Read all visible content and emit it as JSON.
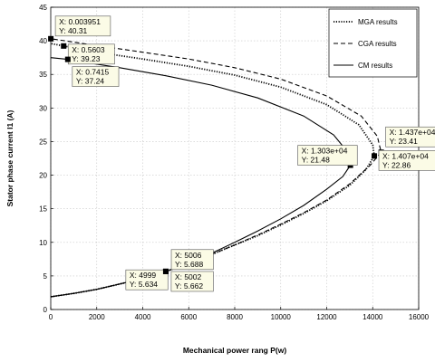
{
  "chart_data": {
    "type": "line",
    "title": "",
    "xlabel": "Mechanical power rang P(w)",
    "ylabel": "Stator phase current I1 (A)",
    "xlim": [
      0,
      16000
    ],
    "ylim": [
      0,
      45
    ],
    "xticks": [
      0,
      2000,
      4000,
      6000,
      8000,
      10000,
      12000,
      14000,
      16000
    ],
    "yticks": [
      0,
      5,
      10,
      15,
      20,
      25,
      30,
      35,
      40,
      45
    ],
    "grid": true,
    "legend_position": "top-right",
    "series": [
      {
        "name": "MGA results",
        "style": "dotted",
        "points": [
          [
            0,
            1.9
          ],
          [
            1000,
            2.4
          ],
          [
            2000,
            3.0
          ],
          [
            3000,
            3.8
          ],
          [
            4000,
            4.6
          ],
          [
            5002,
            5.662
          ],
          [
            6000,
            6.9
          ],
          [
            7000,
            8.2
          ],
          [
            8000,
            9.6
          ],
          [
            9000,
            11.0
          ],
          [
            10000,
            12.6
          ],
          [
            11000,
            14.3
          ],
          [
            12000,
            16.2
          ],
          [
            13000,
            18.5
          ],
          [
            13700,
            20.8
          ],
          [
            14070,
            22.86
          ],
          [
            14000,
            24.5
          ],
          [
            13400,
            27.5
          ],
          [
            12000,
            30.5
          ],
          [
            10000,
            33.1
          ],
          [
            8000,
            34.9
          ],
          [
            6000,
            36.2
          ],
          [
            4000,
            37.3
          ],
          [
            2000,
            38.3
          ],
          [
            561,
            39.23
          ],
          [
            0,
            39.6
          ]
        ]
      },
      {
        "name": "CGA results",
        "style": "dashed",
        "points": [
          [
            0,
            1.9
          ],
          [
            1000,
            2.4
          ],
          [
            2000,
            3.0
          ],
          [
            3000,
            3.8
          ],
          [
            4000,
            4.6
          ],
          [
            5006,
            5.688
          ],
          [
            6000,
            6.9
          ],
          [
            7000,
            8.2
          ],
          [
            8000,
            9.6
          ],
          [
            9000,
            11.1
          ],
          [
            10000,
            12.7
          ],
          [
            11000,
            14.4
          ],
          [
            12000,
            16.3
          ],
          [
            13000,
            18.7
          ],
          [
            13900,
            21.5
          ],
          [
            14370,
            23.41
          ],
          [
            14200,
            25.8
          ],
          [
            13500,
            28.8
          ],
          [
            12000,
            31.8
          ],
          [
            10000,
            34.3
          ],
          [
            8000,
            36.0
          ],
          [
            6000,
            37.3
          ],
          [
            4000,
            38.3
          ],
          [
            2000,
            39.3
          ],
          [
            4,
            40.31
          ]
        ]
      },
      {
        "name": "CM results",
        "style": "solid",
        "points": [
          [
            0,
            1.9
          ],
          [
            1000,
            2.4
          ],
          [
            2000,
            3.0
          ],
          [
            3000,
            3.8
          ],
          [
            4000,
            4.6
          ],
          [
            4999,
            5.634
          ],
          [
            6000,
            6.9
          ],
          [
            7000,
            8.4
          ],
          [
            8000,
            10.0
          ],
          [
            9000,
            11.7
          ],
          [
            10000,
            13.5
          ],
          [
            11000,
            15.5
          ],
          [
            12000,
            17.9
          ],
          [
            12700,
            19.8
          ],
          [
            13030,
            21.48
          ],
          [
            12900,
            23.5
          ],
          [
            12300,
            26.0
          ],
          [
            11000,
            28.8
          ],
          [
            9000,
            31.5
          ],
          [
            7000,
            33.4
          ],
          [
            5000,
            34.8
          ],
          [
            3000,
            36.0
          ],
          [
            1500,
            36.8
          ],
          [
            742,
            37.24
          ],
          [
            0,
            37.5
          ]
        ]
      }
    ],
    "datatips": [
      {
        "label_x": "X: 0.003951",
        "label_y": "Y: 40.31",
        "x": 4,
        "y": 40.31
      },
      {
        "label_x": "X: 0.5603",
        "label_y": "Y: 39.23",
        "x": 561,
        "y": 39.23
      },
      {
        "label_x": "X: 0.7415",
        "label_y": "Y: 37.24",
        "x": 742,
        "y": 37.24
      },
      {
        "label_x": "X: 1.303e+04",
        "label_y": "Y: 21.48",
        "x": 13030,
        "y": 21.48
      },
      {
        "label_x": "X: 1.437e+04",
        "label_y": "Y: 23.41",
        "x": 14370,
        "y": 23.41
      },
      {
        "label_x": "X: 1.407e+04",
        "label_y": "Y: 22.86",
        "x": 14070,
        "y": 22.86
      },
      {
        "label_x": "X: 5006",
        "label_y": "Y: 5.688",
        "x": 5006,
        "y": 5.688
      },
      {
        "label_x": "X: 4999",
        "label_y": "Y: 5.634",
        "x": 4999,
        "y": 5.634
      },
      {
        "label_x": "X: 5002",
        "label_y": "Y: 5.662",
        "x": 5002,
        "y": 5.662
      }
    ]
  }
}
